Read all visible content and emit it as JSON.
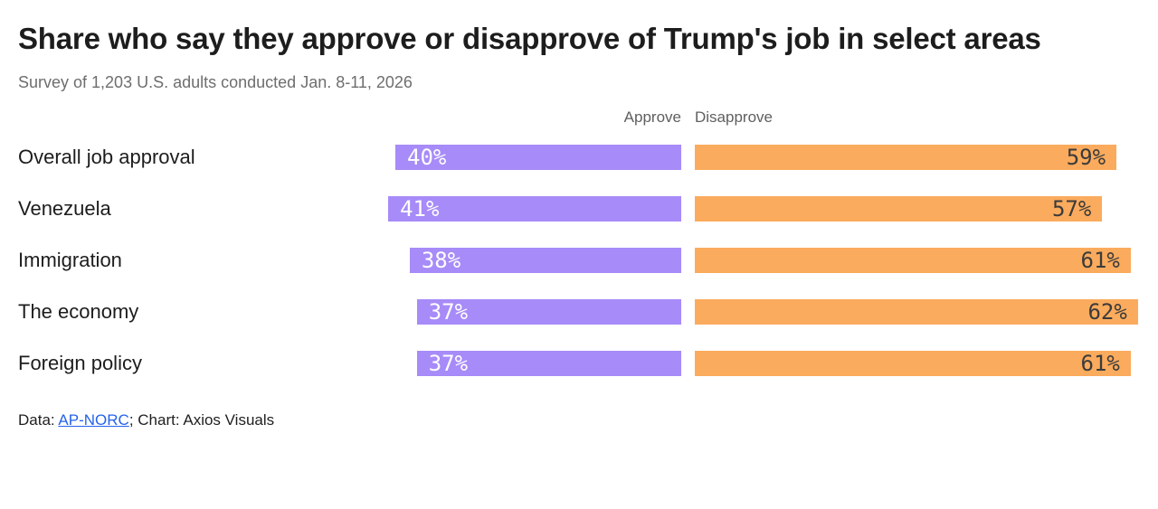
{
  "header": {
    "title": "Share who say they approve or disapprove of Trump's job in select areas",
    "subtitle": "Survey of 1,203 U.S. adults conducted Jan. 8-11, 2026"
  },
  "chart_data": {
    "type": "bar",
    "orientation": "horizontal",
    "title": "Share who say they approve or disapprove of Trump's job in select areas",
    "subtitle": "Survey of 1,203 U.S. adults conducted Jan. 8-11, 2026",
    "categories": [
      "Overall job approval",
      "Venezuela",
      "Immigration",
      "The economy",
      "Foreign policy"
    ],
    "series": [
      {
        "name": "Approve",
        "color": "#a78bf8",
        "values": [
          40,
          41,
          38,
          37,
          37
        ]
      },
      {
        "name": "Disapprove",
        "color": "#fbab5d",
        "values": [
          59,
          57,
          61,
          62,
          61
        ]
      }
    ],
    "value_suffix": "%",
    "xlim": [
      0,
      100
    ],
    "legend_position": "top",
    "grid": false
  },
  "footer": {
    "prefix": "Data: ",
    "link_label": "AP-NORC",
    "suffix": "; Chart: Axios Visuals",
    "link_color": "#2563eb"
  },
  "colors": {
    "approve": "#a78bf8",
    "disapprove": "#fbab5d",
    "title_text": "#1d1d1d",
    "muted_text": "#6e6e6e",
    "disapprove_value_text": "#3b3b3b"
  }
}
